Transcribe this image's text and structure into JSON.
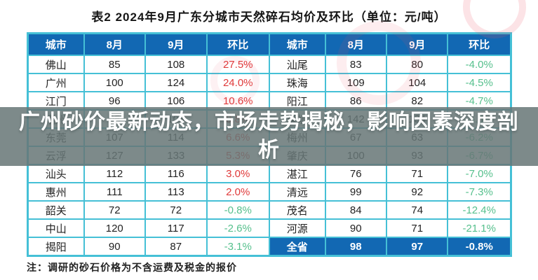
{
  "meta": {
    "title": "表2 2024年9月广东分城市天然碎石均价及环比（单位：元/吨）",
    "note": "注：调研的砂石价格为不含运费及税金的报价"
  },
  "overlay": {
    "headline": "广州砂价最新动态，市场走势揭秘，影响因素深度剖析"
  },
  "table": {
    "headers": [
      "城市",
      "8月",
      "9月",
      "环比"
    ],
    "rows": [
      {
        "left": {
          "city": "佛山",
          "aug": "85",
          "sep": "108",
          "mom": "27.5%"
        },
        "right": {
          "city": "汕尾",
          "aug": "83",
          "sep": "80",
          "mom": "-4.0%"
        }
      },
      {
        "left": {
          "city": "广州",
          "aug": "100",
          "sep": "124",
          "mom": "24.0%"
        },
        "right": {
          "city": "珠海",
          "aug": "109",
          "sep": "104",
          "mom": "-4.5%"
        }
      },
      {
        "left": {
          "city": "江门",
          "aug": "96",
          "sep": "106",
          "mom": "10.6%"
        },
        "right": {
          "city": "阳江",
          "aug": "86",
          "sep": "82",
          "mom": "-4.7%"
        }
      },
      {
        "left": {
          "city": "潮州",
          "aug": "95",
          "sep": "103",
          "mom": "8.8%"
        },
        "right": {
          "city": "深圳",
          "aug": "142",
          "sep": "134",
          "mom": "-5.6%"
        }
      },
      {
        "left": {
          "city": "东莞",
          "aug": "107",
          "sep": "114",
          "mom": "6.6%"
        },
        "right": {
          "city": "梅州",
          "aug": "67",
          "sep": "63",
          "mom": "-6.2%"
        }
      },
      {
        "left": {
          "city": "云浮",
          "aug": "127",
          "sep": "133",
          "mom": "5.3%"
        },
        "right": {
          "city": "肇庆",
          "aug": "100",
          "sep": "93",
          "mom": "-6.7%"
        }
      },
      {
        "left": {
          "city": "汕头",
          "aug": "112",
          "sep": "116",
          "mom": "3.0%"
        },
        "right": {
          "city": "湛江",
          "aug": "76",
          "sep": "71",
          "mom": "-7.0%"
        }
      },
      {
        "left": {
          "city": "惠州",
          "aug": "111",
          "sep": "113",
          "mom": "2.0%"
        },
        "right": {
          "city": "清远",
          "aug": "99",
          "sep": "92",
          "mom": "-7.3%"
        }
      },
      {
        "left": {
          "city": "韶关",
          "aug": "72",
          "sep": "72",
          "mom": "-0.8%"
        },
        "right": {
          "city": "茂名",
          "aug": "84",
          "sep": "74",
          "mom": "-12.4%"
        }
      },
      {
        "left": {
          "city": "中山",
          "aug": "120",
          "sep": "117",
          "mom": "-2.6%"
        },
        "right": {
          "city": "河源",
          "aug": "90",
          "sep": "71",
          "mom": "-21.1%"
        }
      },
      {
        "left": {
          "city": "揭阳",
          "aug": "90",
          "sep": "87",
          "mom": "-3.1%"
        },
        "right": {
          "city": "全省",
          "aug": "98",
          "sep": "97",
          "mom": "-0.8%",
          "highlight": true
        }
      }
    ]
  },
  "colors": {
    "header_bg": "#1268b3",
    "highlight_row_bg": "#1268b3",
    "border": "#45c0d6",
    "positive_mom": "#e03a3a",
    "negative_mom": "#56c08d",
    "overlay_bg": "rgba(104,119,119,0.86)",
    "overlay_text": "#ffffff",
    "watermark_pink": "rgba(235,80,100,0.15)"
  },
  "chart_data": {
    "type": "table",
    "title": "表2 2024年9月广东分城市天然碎石均价及环比（单位：元/吨）",
    "columns": [
      "城市",
      "8月",
      "9月",
      "环比"
    ],
    "rows": [
      [
        "佛山",
        85,
        108,
        "27.5%"
      ],
      [
        "广州",
        100,
        124,
        "24.0%"
      ],
      [
        "江门",
        96,
        106,
        "10.6%"
      ],
      [
        "潮州",
        95,
        103,
        "8.8%"
      ],
      [
        "东莞",
        107,
        114,
        "6.6%"
      ],
      [
        "云浮",
        127,
        133,
        "5.3%"
      ],
      [
        "汕头",
        112,
        116,
        "3.0%"
      ],
      [
        "惠州",
        111,
        113,
        "2.0%"
      ],
      [
        "韶关",
        72,
        72,
        "-0.8%"
      ],
      [
        "中山",
        120,
        117,
        "-2.6%"
      ],
      [
        "揭阳",
        90,
        87,
        "-3.1%"
      ],
      [
        "汕尾",
        83,
        80,
        "-4.0%"
      ],
      [
        "珠海",
        109,
        104,
        "-4.5%"
      ],
      [
        "阳江",
        86,
        82,
        "-4.7%"
      ],
      [
        "深圳",
        142,
        134,
        "-5.6%"
      ],
      [
        "梅州",
        67,
        63,
        "-6.2%"
      ],
      [
        "肇庆",
        100,
        93,
        "-6.7%"
      ],
      [
        "湛江",
        76,
        71,
        "-7.0%"
      ],
      [
        "清远",
        99,
        92,
        "-7.3%"
      ],
      [
        "茂名",
        84,
        74,
        "-12.4%"
      ],
      [
        "河源",
        90,
        71,
        "-21.1%"
      ],
      [
        "全省",
        98,
        97,
        "-0.8%"
      ]
    ],
    "annotations": [
      "注：调研的砂石价格为不含运费及税金的报价"
    ]
  }
}
